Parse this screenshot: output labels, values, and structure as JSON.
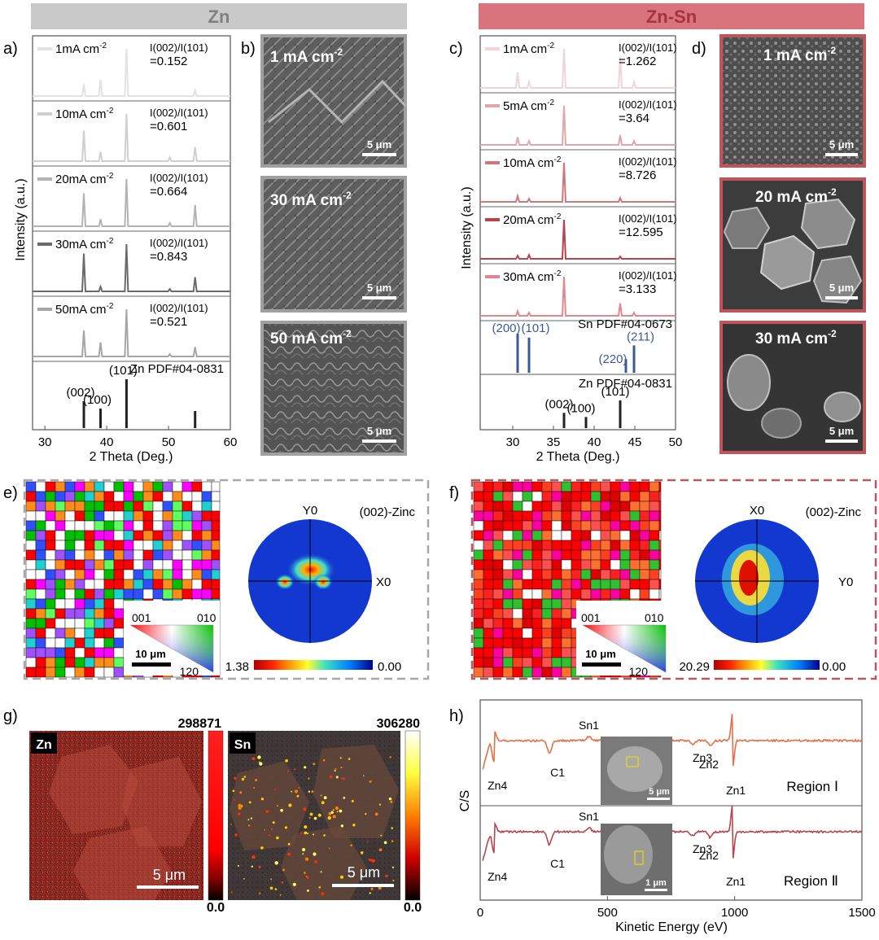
{
  "headers": {
    "left": "Zn",
    "right": "Zn-Sn"
  },
  "colors": {
    "zn_header": "#c9c9c9",
    "znsn_header": "#d9747c",
    "accent_red": "#c0545b",
    "pdf_blue": "#3a5a96",
    "auger1": "#e37046",
    "auger2": "#b8454c"
  },
  "panel_letters": {
    "a": "a)",
    "b": "b)",
    "c": "c)",
    "d": "d)",
    "e": "e)",
    "f": "f)",
    "g": "g)",
    "h": "h)"
  },
  "panel_a": {
    "ylabel": "Intensity (a.u.)",
    "xlabel": "2 Theta (Deg.)",
    "xlim": [
      28,
      60
    ],
    "xticks": [
      "30",
      "40",
      "50",
      "60"
    ],
    "traces": [
      {
        "label": "1mA cm",
        "sup": "-2",
        "ratio": "=0.152",
        "ratio_label": "I(002)/I(101)",
        "color": "#e2e2e2",
        "peaks": [
          [
            36.3,
            0.25
          ],
          [
            39.0,
            0.35
          ],
          [
            43.2,
            1.0
          ],
          [
            54.3,
            0.12
          ]
        ]
      },
      {
        "label": "10mA cm",
        "sup": "-2",
        "ratio": "=0.601",
        "ratio_label": "I(002)/I(101)",
        "color": "#cfcfcf",
        "peaks": [
          [
            36.3,
            0.65
          ],
          [
            39.0,
            0.2
          ],
          [
            43.2,
            1.0
          ],
          [
            50.2,
            0.08
          ],
          [
            54.3,
            0.3
          ]
        ]
      },
      {
        "label": "20mA cm",
        "sup": "-2",
        "ratio": "=0.664",
        "ratio_label": "I(002)/I(101)",
        "color": "#b3b3b3",
        "peaks": [
          [
            36.3,
            0.7
          ],
          [
            39.0,
            0.15
          ],
          [
            43.2,
            1.0
          ],
          [
            50.2,
            0.07
          ],
          [
            54.3,
            0.45
          ]
        ]
      },
      {
        "label": "30mA cm",
        "sup": "-2",
        "ratio": "=0.843",
        "ratio_label": "I(002)/I(101)",
        "color": "#6a6a6a",
        "peaks": [
          [
            36.3,
            0.8
          ],
          [
            39.0,
            0.1
          ],
          [
            43.2,
            1.0
          ],
          [
            50.2,
            0.05
          ],
          [
            54.3,
            0.3
          ]
        ]
      },
      {
        "label": "50mA cm",
        "sup": "-2",
        "ratio": "=0.521",
        "ratio_label": "I(002)/I(101)",
        "color": "#a6a6a6",
        "peaks": [
          [
            36.3,
            0.55
          ],
          [
            39.0,
            0.3
          ],
          [
            43.2,
            1.0
          ],
          [
            50.2,
            0.05
          ],
          [
            54.3,
            0.2
          ]
        ]
      }
    ],
    "ref_title": "Zn PDF#04-0831",
    "ref_lines": [
      {
        "x": 36.3,
        "h": 0.55,
        "label": "(002)"
      },
      {
        "x": 39.0,
        "h": 0.4,
        "label": "(100)"
      },
      {
        "x": 43.2,
        "h": 1.0,
        "label": "(101)"
      },
      {
        "x": 54.3,
        "h": 0.35,
        "label": ""
      }
    ]
  },
  "panel_c": {
    "ylabel": "Intensity (a.u.)",
    "xlabel": "2 Theta (Deg.)",
    "xlim": [
      26,
      50
    ],
    "xticks": [
      "30",
      "35",
      "40",
      "45",
      "50"
    ],
    "traces": [
      {
        "label": "1mA cm",
        "sup": "-2",
        "ratio": "=1.262",
        "ratio_label": "I(002)/I(101)",
        "color": "#f2d4d6",
        "peaks": [
          [
            30.6,
            0.4
          ],
          [
            32.0,
            0.15
          ],
          [
            36.3,
            1.0
          ],
          [
            43.2,
            0.8
          ],
          [
            44.9,
            0.15
          ]
        ]
      },
      {
        "label": "5mA cm",
        "sup": "-2",
        "ratio": "=3.64",
        "ratio_label": "I(002)/I(101)",
        "color": "#e0a6aa",
        "peaks": [
          [
            30.6,
            0.2
          ],
          [
            32.0,
            0.1
          ],
          [
            36.3,
            1.0
          ],
          [
            43.2,
            0.25
          ],
          [
            44.9,
            0.1
          ]
        ]
      },
      {
        "label": "10mA cm",
        "sup": "-2",
        "ratio": "=8.726",
        "ratio_label": "I(002)/I(101)",
        "color": "#d0767c",
        "peaks": [
          [
            30.6,
            0.15
          ],
          [
            32.0,
            0.08
          ],
          [
            36.3,
            1.0
          ],
          [
            43.2,
            0.1
          ]
        ]
      },
      {
        "label": "20mA cm",
        "sup": "-2",
        "ratio": "=12.595",
        "ratio_label": "I(002)/I(101)",
        "color": "#b8434a",
        "peaks": [
          [
            30.6,
            0.08
          ],
          [
            32.0,
            0.1
          ],
          [
            36.3,
            1.0
          ],
          [
            43.2,
            0.06
          ]
        ]
      },
      {
        "label": "30mA cm",
        "sup": "-2",
        "ratio": "=3.133",
        "ratio_label": "I(002)/I(101)",
        "color": "#e1878d",
        "peaks": [
          [
            30.6,
            0.12
          ],
          [
            32.0,
            0.08
          ],
          [
            36.3,
            1.0
          ],
          [
            43.2,
            0.32
          ],
          [
            44.9,
            0.08
          ]
        ]
      }
    ],
    "ref_sn_title": "Sn PDF#04-0673",
    "ref_sn": [
      {
        "x": 30.6,
        "h": 1.0,
        "label": "(200)"
      },
      {
        "x": 32.0,
        "h": 0.9,
        "label": "(101)"
      },
      {
        "x": 43.9,
        "h": 0.35,
        "label": "(220)"
      },
      {
        "x": 44.9,
        "h": 0.7,
        "label": "(211)"
      }
    ],
    "ref_zn_title": "Zn PDF#04-0831",
    "ref_zn": [
      {
        "x": 36.3,
        "h": 0.55,
        "label": "(002)"
      },
      {
        "x": 39.0,
        "h": 0.4,
        "label": "(100)"
      },
      {
        "x": 43.2,
        "h": 1.0,
        "label": "(101)"
      }
    ]
  },
  "panel_b": {
    "images": [
      {
        "label": "1 mA cm",
        "sup": "-2",
        "scale": "5 μm"
      },
      {
        "label": "30 mA cm",
        "sup": "-2",
        "scale": "5 μm"
      },
      {
        "label": "50 mA cm",
        "sup": "-2",
        "scale": "5 μm"
      }
    ]
  },
  "panel_d": {
    "images": [
      {
        "label": "1 mA cm",
        "sup": "-2",
        "scale": "5 μm"
      },
      {
        "label": "20 mA cm",
        "sup": "-2",
        "scale": "5 μm"
      },
      {
        "label": "30 mA cm",
        "sup": "-2",
        "scale": "5 μm"
      }
    ]
  },
  "panel_e": {
    "title": "(002)-Zinc",
    "axis_top": "Y0",
    "axis_right": "X0",
    "ipf_labels": {
      "a": "001",
      "b": "010",
      "c": "120"
    },
    "scalebar": "10 μm",
    "cbar_max": "1.38",
    "cbar_min": "0.00"
  },
  "panel_f": {
    "title": "(002)-Zinc",
    "axis_top": "X0",
    "axis_right": "Y0",
    "ipf_labels": {
      "a": "001",
      "b": "010",
      "c": "120"
    },
    "scalebar": "10 μm",
    "cbar_max": "20.29",
    "cbar_min": "0.00"
  },
  "panel_g": {
    "zn": {
      "label": "Zn",
      "max": "298871",
      "min": "0.0",
      "scale": "5 μm"
    },
    "sn": {
      "label": "Sn",
      "max": "306280",
      "min": "0.0",
      "scale": "5 μm"
    }
  },
  "chart_data": [
    {
      "type": "line",
      "title": "",
      "xlabel": "2 Theta (Deg.)",
      "ylabel": "Intensity (a.u.)",
      "xlim": [
        28,
        60
      ],
      "series": [
        {
          "name": "1mA cm-2",
          "peaks_x": [
            36.3,
            39.0,
            43.2,
            54.3
          ],
          "relative_intensity": [
            0.25,
            0.35,
            1.0,
            0.12
          ]
        },
        {
          "name": "10mA cm-2",
          "peaks_x": [
            36.3,
            39.0,
            43.2,
            50.2,
            54.3
          ],
          "relative_intensity": [
            0.65,
            0.2,
            1.0,
            0.08,
            0.3
          ]
        },
        {
          "name": "20mA cm-2",
          "peaks_x": [
            36.3,
            39.0,
            43.2,
            50.2,
            54.3
          ],
          "relative_intensity": [
            0.7,
            0.15,
            1.0,
            0.07,
            0.45
          ]
        },
        {
          "name": "30mA cm-2",
          "peaks_x": [
            36.3,
            39.0,
            43.2,
            50.2,
            54.3
          ],
          "relative_intensity": [
            0.8,
            0.1,
            1.0,
            0.05,
            0.3
          ]
        },
        {
          "name": "50mA cm-2",
          "peaks_x": [
            36.3,
            39.0,
            43.2,
            50.2,
            54.3
          ],
          "relative_intensity": [
            0.55,
            0.3,
            1.0,
            0.05,
            0.2
          ]
        }
      ],
      "ratios": [
        0.152,
        0.601,
        0.664,
        0.843,
        0.521
      ]
    },
    {
      "type": "line",
      "title": "",
      "xlabel": "2 Theta (Deg.)",
      "ylabel": "Intensity (a.u.)",
      "xlim": [
        26,
        50
      ],
      "series": [
        {
          "name": "1mA cm-2",
          "peaks_x": [
            30.6,
            32.0,
            36.3,
            43.2,
            44.9
          ],
          "relative_intensity": [
            0.4,
            0.15,
            1.0,
            0.8,
            0.15
          ]
        },
        {
          "name": "5mA cm-2",
          "peaks_x": [
            30.6,
            32.0,
            36.3,
            43.2,
            44.9
          ],
          "relative_intensity": [
            0.2,
            0.1,
            1.0,
            0.25,
            0.1
          ]
        },
        {
          "name": "10mA cm-2",
          "peaks_x": [
            30.6,
            32.0,
            36.3,
            43.2
          ],
          "relative_intensity": [
            0.15,
            0.08,
            1.0,
            0.1
          ]
        },
        {
          "name": "20mA cm-2",
          "peaks_x": [
            30.6,
            32.0,
            36.3,
            43.2
          ],
          "relative_intensity": [
            0.08,
            0.1,
            1.0,
            0.06
          ]
        },
        {
          "name": "30mA cm-2",
          "peaks_x": [
            30.6,
            32.0,
            36.3,
            43.2,
            44.9
          ],
          "relative_intensity": [
            0.12,
            0.08,
            1.0,
            0.32,
            0.08
          ]
        }
      ],
      "ratios": [
        1.262,
        3.64,
        8.726,
        12.595,
        3.133
      ]
    },
    {
      "type": "line",
      "title": "",
      "xlabel": "Kinetic Energy (eV)",
      "ylabel": "C/S",
      "xlim": [
        0,
        1500
      ],
      "xticks": [
        "0",
        "500",
        "1000",
        "1500"
      ],
      "regions": [
        {
          "name": "Region Ⅰ",
          "inset_scale": "5 μm",
          "color": "#e37046"
        },
        {
          "name": "Region Ⅱ",
          "inset_scale": "1 μm",
          "color": "#b8454c"
        }
      ],
      "features": [
        {
          "x": 55,
          "label": "Zn4",
          "depth": 0.9
        },
        {
          "x": 272,
          "label": "C1",
          "depth": -0.8
        },
        {
          "x": 427,
          "label": "Sn1",
          "depth": 0.25
        },
        {
          "x": 835,
          "label": "Zn3",
          "depth": -0.25
        },
        {
          "x": 905,
          "label": "Zn2",
          "depth": -0.35
        },
        {
          "x": 992,
          "label": "Zn1",
          "depth": 1.0
        }
      ]
    }
  ]
}
